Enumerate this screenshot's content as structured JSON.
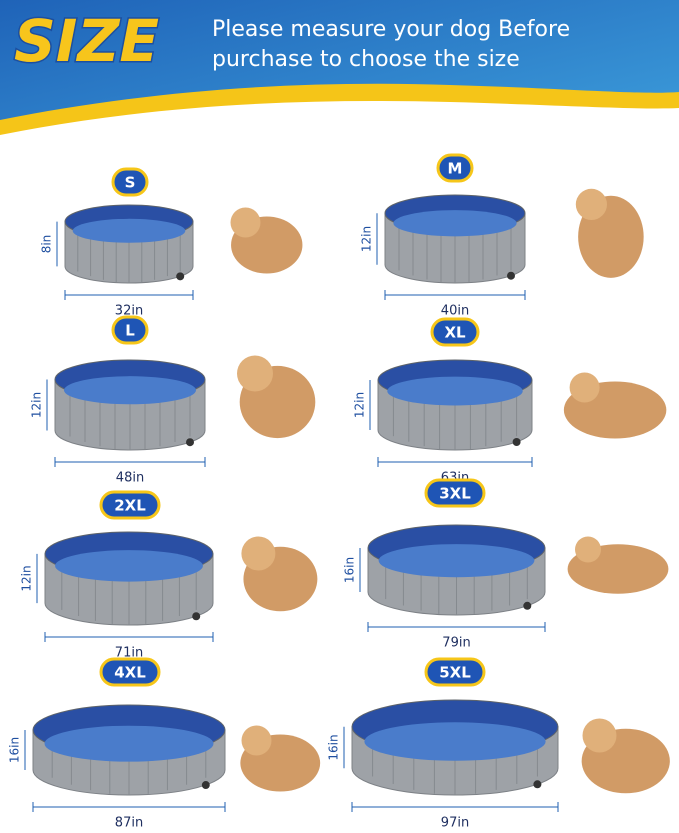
{
  "header": {
    "title": "SIZE",
    "subtitle_lines": [
      "Please measure your dog Before",
      "purchase to choose the size"
    ]
  },
  "items": [
    {
      "size": "S",
      "height": "8in",
      "diameter": "32in"
    },
    {
      "size": "M",
      "height": "12in",
      "diameter": "40in"
    },
    {
      "size": "L",
      "height": "12in",
      "diameter": "48in"
    },
    {
      "size": "XL",
      "height": "12in",
      "diameter": "63in"
    },
    {
      "size": "2XL",
      "height": "12in",
      "diameter": "71in"
    },
    {
      "size": "3XL",
      "height": "16in",
      "diameter": "79in"
    },
    {
      "size": "4XL",
      "height": "16in",
      "diameter": "87in"
    },
    {
      "size": "5XL",
      "height": "16in",
      "diameter": "97in"
    }
  ]
}
